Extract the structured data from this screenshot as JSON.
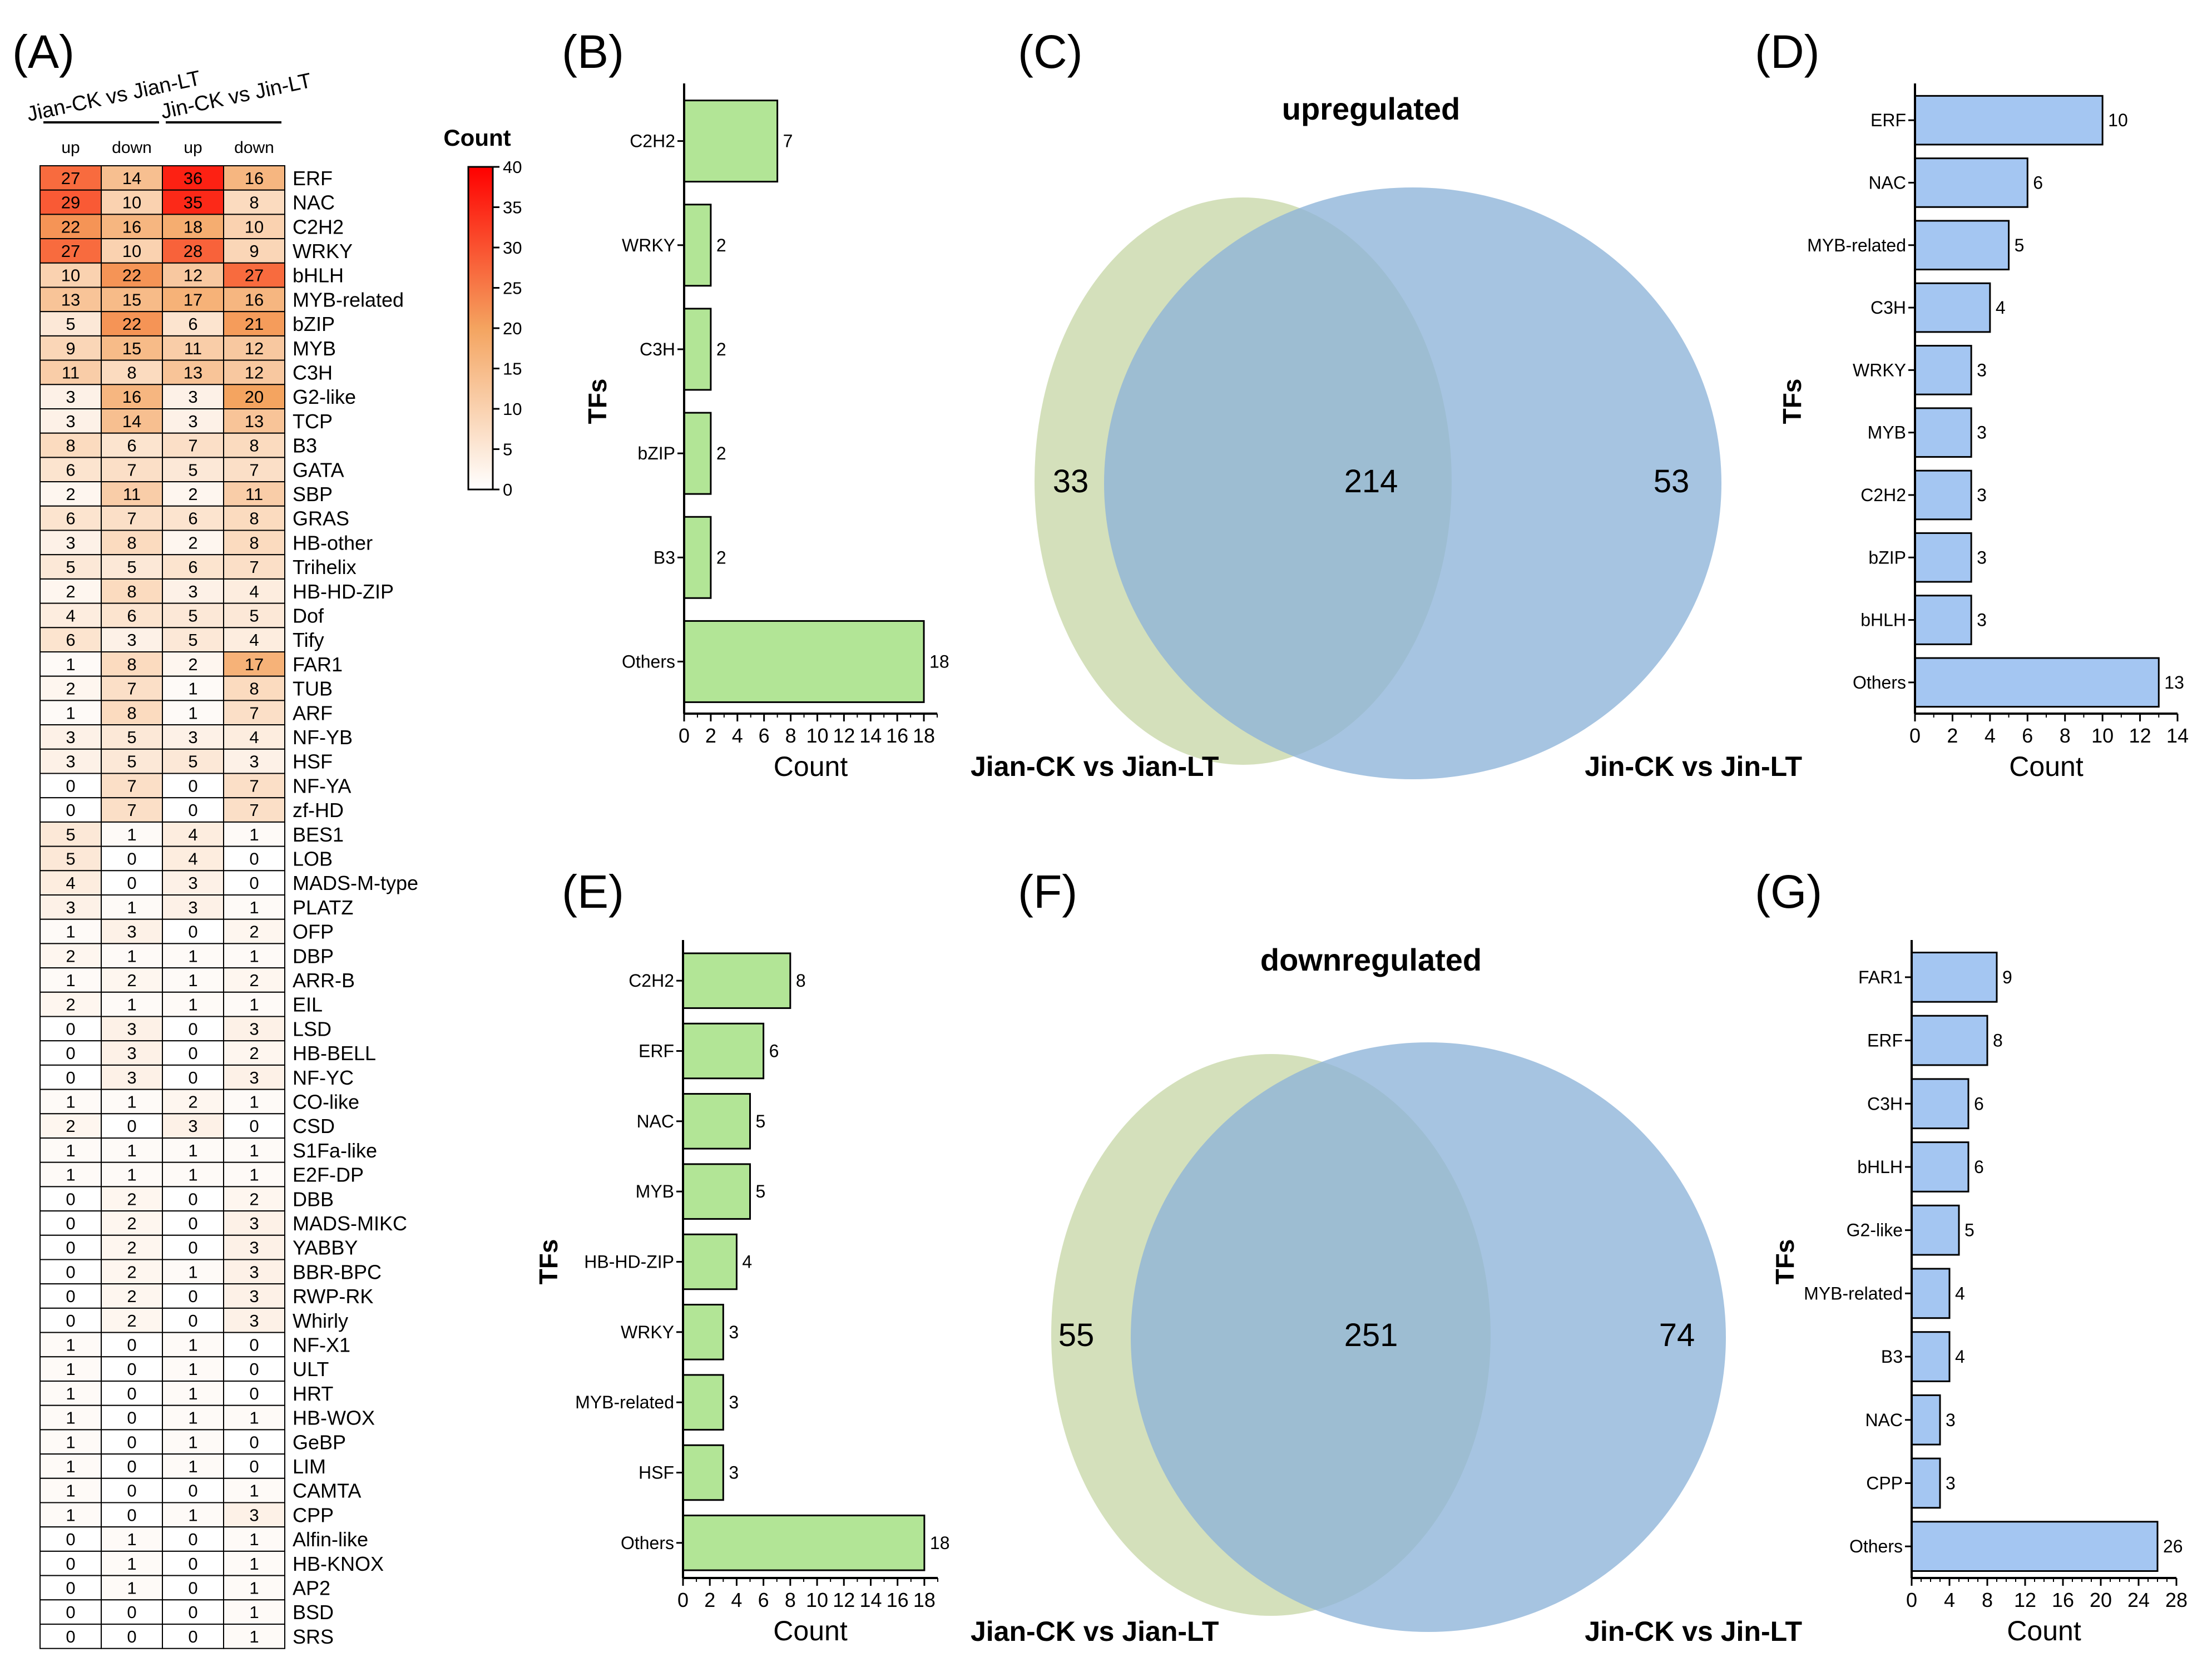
{
  "panel_labels": {
    "a": "(A)",
    "b": "(B)",
    "c": "(C)",
    "d": "(D)",
    "e": "(E)",
    "f": "(F)",
    "g": "(G)"
  },
  "colors": {
    "green_bar": "#b2e596",
    "blue_bar": "#a4c6f2",
    "venn_left": "#cfddb4",
    "venn_right": "#8db4d8",
    "heat_low": "#ffffff",
    "heat_mid": "#f4a460",
    "heat_high": "#ff0000"
  },
  "chart_data": [
    {
      "id": "A",
      "type": "heatmap",
      "group_labels": [
        "Jian-CK vs Jian-LT",
        "Jin-CK vs Jin-LT"
      ],
      "columns": [
        "up",
        "down",
        "up",
        "down"
      ],
      "colorbar": {
        "title": "Count",
        "min": 0,
        "max": 40,
        "ticks": [
          0,
          5,
          10,
          15,
          20,
          25,
          30,
          35,
          40
        ]
      },
      "rows": [
        "ERF",
        "NAC",
        "C2H2",
        "WRKY",
        "bHLH",
        "MYB-related",
        "bZIP",
        "MYB",
        "C3H",
        "G2-like",
        "TCP",
        "B3",
        "GATA",
        "SBP",
        "GRAS",
        "HB-other",
        "Trihelix",
        "HB-HD-ZIP",
        "Dof",
        "Tify",
        "FAR1",
        "TUB",
        "ARF",
        "NF-YB",
        "HSF",
        "NF-YA",
        "zf-HD",
        "BES1",
        "LOB",
        "MADS-M-type",
        "PLATZ",
        "OFP",
        "DBP",
        "ARR-B",
        "EIL",
        "LSD",
        "HB-BELL",
        "NF-YC",
        "CO-like",
        "CSD",
        "S1Fa-like",
        "E2F-DP",
        "DBB",
        "MADS-MIKC",
        "YABBY",
        "BBR-BPC",
        "RWP-RK",
        "Whirly",
        "NF-X1",
        "ULT",
        "HRT",
        "HB-WOX",
        "GeBP",
        "LIM",
        "CAMTA",
        "CPP",
        "Alfin-like",
        "HB-KNOX",
        "AP2",
        "BSD",
        "SRS"
      ],
      "values": [
        [
          27,
          14,
          36,
          16
        ],
        [
          29,
          10,
          35,
          8
        ],
        [
          22,
          16,
          18,
          10
        ],
        [
          27,
          10,
          28,
          9
        ],
        [
          10,
          22,
          12,
          27
        ],
        [
          13,
          15,
          17,
          16
        ],
        [
          5,
          22,
          6,
          21
        ],
        [
          9,
          15,
          11,
          12
        ],
        [
          11,
          8,
          13,
          12
        ],
        [
          3,
          16,
          3,
          20
        ],
        [
          3,
          14,
          3,
          13
        ],
        [
          8,
          6,
          7,
          8
        ],
        [
          6,
          7,
          5,
          7
        ],
        [
          2,
          11,
          2,
          11
        ],
        [
          6,
          7,
          6,
          8
        ],
        [
          3,
          8,
          2,
          8
        ],
        [
          5,
          5,
          6,
          7
        ],
        [
          2,
          8,
          3,
          4
        ],
        [
          4,
          6,
          5,
          5
        ],
        [
          6,
          3,
          5,
          4
        ],
        [
          1,
          8,
          2,
          17
        ],
        [
          2,
          7,
          1,
          8
        ],
        [
          1,
          8,
          1,
          7
        ],
        [
          3,
          5,
          3,
          4
        ],
        [
          3,
          5,
          5,
          3
        ],
        [
          0,
          7,
          0,
          7
        ],
        [
          0,
          7,
          0,
          7
        ],
        [
          5,
          1,
          4,
          1
        ],
        [
          5,
          0,
          4,
          0
        ],
        [
          4,
          0,
          3,
          0
        ],
        [
          3,
          1,
          3,
          1
        ],
        [
          1,
          3,
          0,
          2
        ],
        [
          2,
          1,
          1,
          1
        ],
        [
          1,
          2,
          1,
          2
        ],
        [
          2,
          1,
          1,
          1
        ],
        [
          0,
          3,
          0,
          3
        ],
        [
          0,
          3,
          0,
          2
        ],
        [
          0,
          3,
          0,
          3
        ],
        [
          1,
          1,
          2,
          1
        ],
        [
          2,
          0,
          3,
          0
        ],
        [
          1,
          1,
          1,
          1
        ],
        [
          1,
          1,
          1,
          1
        ],
        [
          0,
          2,
          0,
          2
        ],
        [
          0,
          2,
          0,
          3
        ],
        [
          0,
          2,
          0,
          3
        ],
        [
          0,
          2,
          1,
          3
        ],
        [
          0,
          2,
          0,
          3
        ],
        [
          0,
          2,
          0,
          3
        ],
        [
          1,
          0,
          1,
          0
        ],
        [
          1,
          0,
          1,
          0
        ],
        [
          1,
          0,
          1,
          0
        ],
        [
          1,
          0,
          1,
          1
        ],
        [
          1,
          0,
          1,
          0
        ],
        [
          1,
          0,
          1,
          0
        ],
        [
          1,
          0,
          0,
          1
        ],
        [
          1,
          0,
          1,
          3
        ],
        [
          0,
          1,
          0,
          1
        ],
        [
          0,
          1,
          0,
          1
        ],
        [
          0,
          1,
          0,
          1
        ],
        [
          0,
          0,
          0,
          1
        ],
        [
          0,
          0,
          0,
          1
        ]
      ]
    },
    {
      "id": "B",
      "type": "bar",
      "orientation": "horizontal",
      "categories": [
        "C2H2",
        "WRKY",
        "C3H",
        "bZIP",
        "B3",
        "Others"
      ],
      "values": [
        7,
        2,
        2,
        2,
        2,
        18
      ],
      "xlabel": "Count",
      "ylabel": "TFs",
      "xlim": [
        0,
        19
      ],
      "xticks": [
        0,
        2,
        4,
        6,
        8,
        10,
        12,
        14,
        16,
        18
      ]
    },
    {
      "id": "C",
      "type": "venn",
      "title": "upregulated",
      "sets": [
        "Jian-CK vs Jian-LT",
        "Jin-CK vs Jin-LT"
      ],
      "only_left": 33,
      "intersection": 214,
      "only_right": 53
    },
    {
      "id": "D",
      "type": "bar",
      "orientation": "horizontal",
      "categories": [
        "ERF",
        "NAC",
        "MYB-related",
        "C3H",
        "WRKY",
        "MYB",
        "C2H2",
        "bZIP",
        "bHLH",
        "Others"
      ],
      "values": [
        10,
        6,
        5,
        4,
        3,
        3,
        3,
        3,
        3,
        13
      ],
      "xlabel": "Count",
      "ylabel": "TFs",
      "xlim": [
        0,
        14
      ],
      "xticks": [
        0,
        2,
        4,
        6,
        8,
        10,
        12,
        14
      ]
    },
    {
      "id": "E",
      "type": "bar",
      "orientation": "horizontal",
      "categories": [
        "C2H2",
        "ERF",
        "NAC",
        "MYB",
        "HB-HD-ZIP",
        "WRKY",
        "MYB-related",
        "HSF",
        "Others"
      ],
      "values": [
        8,
        6,
        5,
        5,
        4,
        3,
        3,
        3,
        18
      ],
      "xlabel": "Count",
      "ylabel": "TFs",
      "xlim": [
        0,
        19
      ],
      "xticks": [
        0,
        2,
        4,
        6,
        8,
        10,
        12,
        14,
        16,
        18
      ]
    },
    {
      "id": "F",
      "type": "venn",
      "title": "downregulated",
      "sets": [
        "Jian-CK vs Jian-LT",
        "Jin-CK vs Jin-LT"
      ],
      "only_left": 55,
      "intersection": 251,
      "only_right": 74
    },
    {
      "id": "G",
      "type": "bar",
      "orientation": "horizontal",
      "categories": [
        "FAR1",
        "ERF",
        "C3H",
        "bHLH",
        "G2-like",
        "MYB-related",
        "B3",
        "NAC",
        "CPP",
        "Others"
      ],
      "values": [
        9,
        8,
        6,
        6,
        5,
        4,
        4,
        3,
        3,
        26
      ],
      "xlabel": "Count",
      "ylabel": "TFs",
      "xlim": [
        0,
        28
      ],
      "xticks": [
        0,
        4,
        8,
        12,
        16,
        20,
        24,
        28
      ]
    }
  ]
}
